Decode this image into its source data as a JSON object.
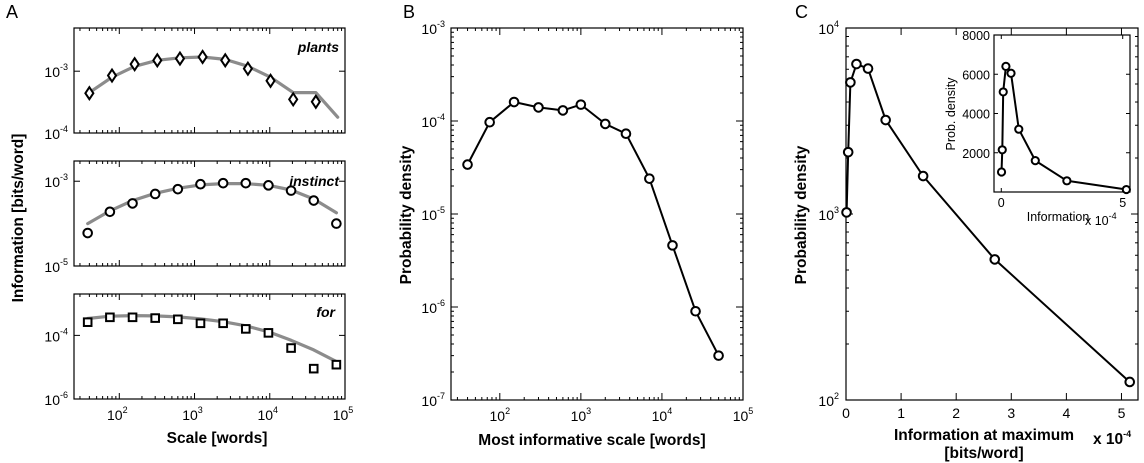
{
  "panel_letters": {
    "a": "A",
    "b": "B",
    "c": "C"
  },
  "chart_data": [
    {
      "panel": "A",
      "type": "scatter",
      "xscale": "log",
      "yscale": "log",
      "xlabel": "Scale [words]",
      "ylabel": "Information [bits/word]",
      "xlim": [
        25,
        100000
      ],
      "x_ticks": [
        100,
        1000,
        10000,
        100000
      ],
      "x_tick_labels": [
        {
          "base": "10",
          "exp": "2"
        },
        {
          "base": "10",
          "exp": "3"
        },
        {
          "base": "10",
          "exp": "4"
        },
        {
          "base": "10",
          "exp": "5"
        }
      ],
      "subplots": [
        {
          "word": "plants",
          "marker": "diamond",
          "ylim": [
            0.0001,
            0.005
          ],
          "y_ticks": [
            0.0001,
            0.001
          ],
          "y_tick_labels": [
            {
              "base": "10",
              "exp": "-4"
            },
            {
              "base": "10",
              "exp": "-3"
            }
          ],
          "points": {
            "x": [
              40,
              80,
              160,
              320,
              640,
              1280,
              2560,
              5120,
              10240,
              20480,
              40960
            ],
            "y": [
              0.00044,
              0.00085,
              0.0013,
              0.0015,
              0.0016,
              0.0017,
              0.0015,
              0.0011,
              0.0007,
              0.00035,
              0.00032
            ]
          },
          "fit": {
            "x": [
              40,
              80,
              160,
              320,
              640,
              1280,
              2560,
              5120,
              10240,
              20480,
              40960,
              80000
            ],
            "y": [
              0.00045,
              0.0008,
              0.0012,
              0.0015,
              0.00165,
              0.0017,
              0.00155,
              0.0012,
              0.0008,
              0.00045,
              0.00045,
              0.00018
            ]
          }
        },
        {
          "word": "instinct",
          "marker": "circle",
          "ylim": [
            1e-05,
            0.003
          ],
          "y_ticks": [
            1e-05,
            0.001
          ],
          "y_tick_labels": [
            {
              "base": "10",
              "exp": "-5"
            },
            {
              "base": "10",
              "exp": "-3"
            }
          ],
          "points": {
            "x": [
              38,
              75,
              150,
              300,
              600,
              1200,
              2400,
              4800,
              9600,
              19200,
              38400,
              76800
            ],
            "y": [
              6e-05,
              0.00019,
              0.0003,
              0.0005,
              0.00065,
              0.00085,
              0.0009,
              0.0009,
              0.0008,
              0.0006,
              0.00035,
              0.0001
            ]
          },
          "fit": {
            "x": [
              38,
              75,
              150,
              300,
              600,
              1200,
              2400,
              4800,
              9600,
              19200,
              38400,
              76800
            ],
            "y": [
              0.0001,
              0.0002,
              0.00035,
              0.00052,
              0.00068,
              0.00082,
              0.00088,
              0.00088,
              0.0008,
              0.00062,
              0.00038,
              0.00018
            ]
          }
        },
        {
          "word": "for",
          "marker": "square",
          "ylim": [
            1e-06,
            0.002
          ],
          "y_ticks": [
            1e-06,
            0.0001
          ],
          "y_tick_labels": [
            {
              "base": "10",
              "exp": "-6"
            },
            {
              "base": "10",
              "exp": "-4"
            }
          ],
          "points": {
            "x": [
              38,
              75,
              150,
              300,
              600,
              1200,
              2400,
              4800,
              9600,
              19200,
              38400,
              76800
            ],
            "y": [
              0.00026,
              0.00037,
              0.00037,
              0.00035,
              0.00032,
              0.00024,
              0.00024,
              0.00016,
              0.00012,
              4e-05,
              9e-06,
              1.2e-05
            ]
          },
          "fit": {
            "x": [
              38,
              75,
              150,
              300,
              600,
              1200,
              2400,
              4800,
              9600,
              19200,
              38400,
              76800
            ],
            "y": [
              0.00034,
              0.0004,
              0.00042,
              0.00041,
              0.00038,
              0.00033,
              0.00027,
              0.0002,
              0.00013,
              7e-05,
              3.5e-05,
              1.5e-05
            ]
          }
        }
      ]
    },
    {
      "panel": "B",
      "type": "line",
      "xscale": "log",
      "yscale": "log",
      "xlabel": "Most informative scale [words]",
      "ylabel": "Probability density",
      "xlim": [
        25,
        100000
      ],
      "ylim": [
        1e-07,
        0.001
      ],
      "x_ticks": [
        100,
        1000,
        10000,
        100000
      ],
      "x_tick_labels": [
        {
          "base": "10",
          "exp": "2"
        },
        {
          "base": "10",
          "exp": "3"
        },
        {
          "base": "10",
          "exp": "4"
        },
        {
          "base": "10",
          "exp": "5"
        }
      ],
      "y_ticks": [
        1e-07,
        1e-06,
        1e-05,
        0.0001,
        0.001
      ],
      "y_tick_labels": [
        {
          "base": "10",
          "exp": "-7"
        },
        {
          "base": "10",
          "exp": "-6"
        },
        {
          "base": "10",
          "exp": "-5"
        },
        {
          "base": "10",
          "exp": "-4"
        },
        {
          "base": "10",
          "exp": "-3"
        }
      ],
      "x": [
        40,
        75,
        150,
        300,
        600,
        1000,
        2000,
        3600,
        7000,
        13500,
        26000,
        50000
      ],
      "y": [
        3.4e-05,
        9.7e-05,
        0.00016,
        0.00014,
        0.00013,
        0.00015,
        9.3e-05,
        7.3e-05,
        2.4e-05,
        4.6e-06,
        9e-07,
        3e-07
      ]
    },
    {
      "panel": "C",
      "type": "line",
      "xscale": "linear",
      "yscale": "log",
      "xlabel": "Information at maximum [bits/word]",
      "x_multiplier": "x 10",
      "x_multiplier_exp": "-4",
      "ylabel": "Probability density",
      "xlim": [
        0,
        5.3
      ],
      "ylim": [
        100,
        10000
      ],
      "x_ticks": [
        0,
        1,
        2,
        3,
        4,
        5
      ],
      "x_tick_labels": [
        "0",
        "1",
        "2",
        "3",
        "4",
        "5"
      ],
      "y_ticks": [
        100,
        1000,
        10000
      ],
      "y_tick_labels": [
        {
          "base": "10",
          "exp": "2"
        },
        {
          "base": "10",
          "exp": "3"
        },
        {
          "base": "10",
          "exp": "4"
        }
      ],
      "x": [
        0.01,
        0.04,
        0.08,
        0.19,
        0.4,
        0.72,
        1.4,
        2.7,
        5.15
      ],
      "y": [
        1020,
        2150,
        5100,
        6400,
        6050,
        3200,
        1600,
        570,
        125
      ],
      "inset": {
        "type": "line",
        "xlabel": "Information",
        "x_multiplier": "x 10",
        "x_multiplier_exp": "-4",
        "ylabel": "Prob. density",
        "xlim": [
          -0.3,
          5.3
        ],
        "ylim": [
          0,
          8000
        ],
        "x_ticks": [
          0,
          5
        ],
        "x_tick_labels": [
          "0",
          "5"
        ],
        "y_ticks": [
          2000,
          4000,
          6000,
          8000
        ],
        "y_tick_labels": [
          "2000",
          "4000",
          "6000",
          "8000"
        ],
        "x": [
          0.01,
          0.04,
          0.08,
          0.19,
          0.4,
          0.72,
          1.4,
          2.7,
          5.15
        ],
        "y": [
          1020,
          2150,
          5100,
          6400,
          6050,
          3200,
          1600,
          570,
          125
        ]
      }
    }
  ]
}
